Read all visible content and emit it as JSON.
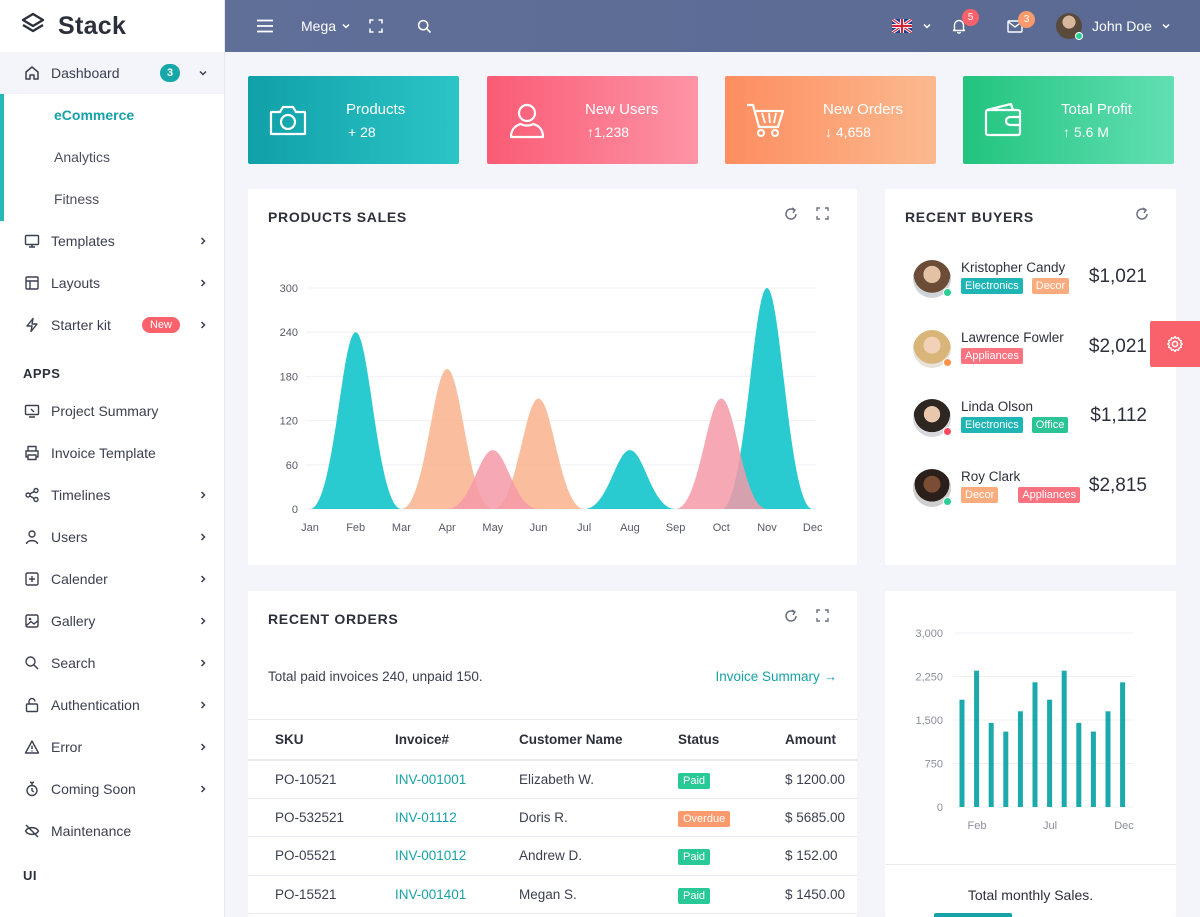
{
  "brand": {
    "name": "Stack"
  },
  "sidebar": {
    "dashboard": {
      "label": "Dashboard",
      "badge": "3"
    },
    "dashboard_sub": [
      "eCommerce",
      "Analytics",
      "Fitness"
    ],
    "main_items": [
      {
        "label": "Templates",
        "icon": "monitor-icon"
      },
      {
        "label": "Layouts",
        "icon": "layout-icon"
      },
      {
        "label": "Starter kit",
        "icon": "lightning-icon",
        "badge": "New"
      }
    ],
    "apps_heading": "APPS",
    "apps_items": [
      {
        "label": "Project Summary",
        "chevron": false
      },
      {
        "label": "Invoice Template",
        "chevron": false
      },
      {
        "label": "Timelines",
        "chevron": true
      },
      {
        "label": "Users",
        "chevron": true
      },
      {
        "label": "Calender",
        "chevron": true
      },
      {
        "label": "Gallery",
        "chevron": true
      },
      {
        "label": "Search",
        "chevron": true
      },
      {
        "label": "Authentication",
        "chevron": true
      },
      {
        "label": "Error",
        "chevron": true
      },
      {
        "label": "Coming Soon",
        "chevron": true
      },
      {
        "label": "Maintenance",
        "chevron": false
      }
    ],
    "ui_heading": "UI"
  },
  "topbar": {
    "mega_label": "Mega",
    "notifications_count": "5",
    "messages_count": "3",
    "user_name": "John Doe"
  },
  "stats": [
    {
      "title": "Products",
      "value": "+ 28",
      "icon": "camera-icon"
    },
    {
      "title": "New Users",
      "value": "↑1,238",
      "icon": "user-icon"
    },
    {
      "title": "New Orders",
      "value": "↓ 4,658",
      "icon": "cart-icon"
    },
    {
      "title": "Total Profit",
      "value": "↑ 5.6 M",
      "icon": "wallet-icon"
    }
  ],
  "products_sales": {
    "title": "PRODUCTS SALES"
  },
  "recent_buyers": {
    "title": "RECENT BUYERS",
    "buyers": [
      {
        "name": "Kristopher Candy",
        "amount": "$1,021",
        "status_color": "#28d094",
        "tags": [
          {
            "text": "Electronics",
            "color": "#1fb5b5"
          },
          {
            "text": "Decor",
            "color": "#fbac7e"
          }
        ]
      },
      {
        "name": "Lawrence Fowler",
        "amount": "$2,021",
        "status_color": "#ff9149",
        "tags": [
          {
            "text": "Appliances",
            "color": "#f8727f"
          }
        ]
      },
      {
        "name": "Linda Olson",
        "amount": "$1,112",
        "status_color": "#ff4961",
        "tags": [
          {
            "text": "Electronics",
            "color": "#1fb5b5"
          },
          {
            "text": "Office",
            "color": "#2bc497"
          }
        ]
      },
      {
        "name": "Roy Clark",
        "amount": "$2,815",
        "status_color": "#28d094",
        "tags": [
          {
            "text": "Decor",
            "color": "#fbac7e"
          },
          {
            "text": "Appliances",
            "color": "#f8727f"
          }
        ]
      }
    ]
  },
  "recent_orders": {
    "title": "RECENT ORDERS",
    "summary": "Total paid invoices 240, unpaid 150.",
    "link": "Invoice Summary →",
    "columns": [
      "SKU",
      "Invoice#",
      "Customer Name",
      "Status",
      "Amount"
    ],
    "rows": [
      {
        "sku": "PO-10521",
        "invoice": "INV-001001",
        "customer": "Elizabeth W.",
        "status": "Paid",
        "status_color": "#28c996",
        "amount": "$ 1200.00"
      },
      {
        "sku": "PO-532521",
        "invoice": "INV-01112",
        "customer": "Doris R.",
        "status": "Overdue",
        "status_color": "#fb9a6c",
        "amount": "$ 5685.00"
      },
      {
        "sku": "PO-05521",
        "invoice": "INV-001012",
        "customer": "Andrew D.",
        "status": "Paid",
        "status_color": "#28c996",
        "amount": "$ 152.00"
      },
      {
        "sku": "PO-15521",
        "invoice": "INV-001401",
        "customer": "Megan S.",
        "status": "Paid",
        "status_color": "#28c996",
        "amount": "$ 1450.00"
      }
    ]
  },
  "monthly": {
    "label": "Total monthly Sales."
  },
  "chart_data": [
    {
      "type": "area",
      "title": "PRODUCTS SALES",
      "categories": [
        "Jan",
        "Feb",
        "Mar",
        "Apr",
        "May",
        "Jun",
        "Jul",
        "Aug",
        "Sep",
        "Oct",
        "Nov",
        "Dec"
      ],
      "ylim": [
        0,
        300
      ],
      "yticks": [
        0,
        60,
        120,
        180,
        240,
        300
      ],
      "grid": true,
      "series": [
        {
          "color": "#1ec8cf",
          "values": [
            0,
            240,
            0,
            0,
            0,
            0,
            0,
            80,
            0,
            0,
            300,
            0
          ]
        },
        {
          "color": "#f9b28d",
          "values": [
            0,
            0,
            0,
            190,
            0,
            150,
            0,
            0,
            0,
            0,
            0,
            0
          ]
        },
        {
          "color": "#f59aa8",
          "values": [
            0,
            0,
            0,
            0,
            80,
            0,
            0,
            0,
            0,
            150,
            0,
            0
          ]
        }
      ]
    },
    {
      "type": "bar",
      "title": "Total monthly Sales.",
      "ylim": [
        0,
        3000
      ],
      "yticks": [
        0,
        750,
        1500,
        2250,
        3000
      ],
      "xtick_labels": [
        "Feb",
        "Jul",
        "Dec"
      ],
      "values": [
        1850,
        2350,
        1450,
        1300,
        1650,
        2150,
        1850,
        2350,
        1450,
        1300,
        1650,
        2150
      ],
      "color": "#1ba9ab"
    }
  ]
}
